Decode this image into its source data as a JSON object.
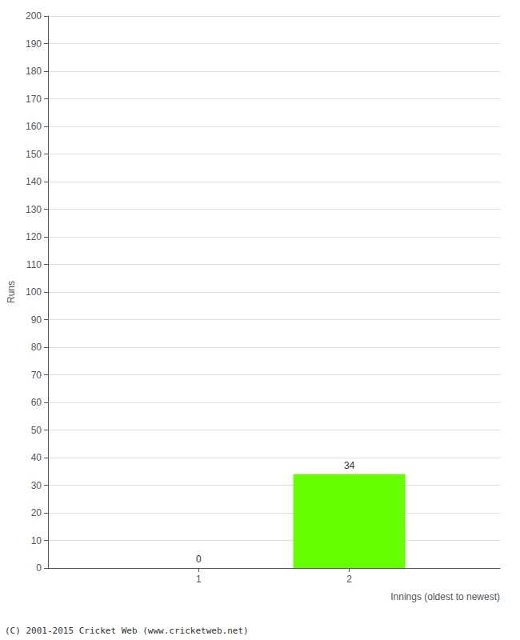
{
  "chart_data": {
    "type": "bar",
    "x": [
      1,
      2
    ],
    "values": [
      0,
      34
    ],
    "color": "#66ff00",
    "xlabel": "Innings (oldest to newest)",
    "ylabel": "Runs",
    "xlim": [
      0,
      3
    ],
    "xticks": [
      1,
      2
    ],
    "ylim": [
      0,
      200
    ],
    "yticks": [
      0,
      10,
      20,
      30,
      40,
      50,
      60,
      70,
      80,
      90,
      100,
      110,
      120,
      130,
      140,
      150,
      160,
      170,
      180,
      190,
      200
    ],
    "grid": true,
    "data_labels": true,
    "annotation": "(C) 2001-2015 Cricket Web (www.cricketweb.net)"
  }
}
